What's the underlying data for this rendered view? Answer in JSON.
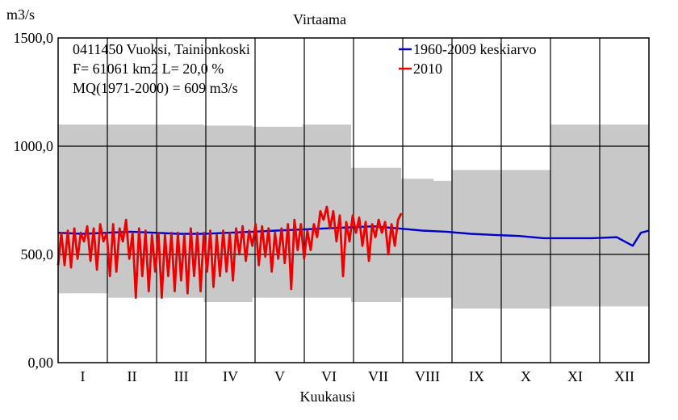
{
  "chart_data": {
    "type": "line",
    "title": "Virtaama",
    "ylabel": "m3/s",
    "xlabel": "Kuukausi",
    "ylim": [
      0,
      1500
    ],
    "y_ticks": [
      {
        "value": 0,
        "label": "0,00"
      },
      {
        "value": 500,
        "label": "500,0"
      },
      {
        "value": 1000,
        "label": "1000,0"
      },
      {
        "value": 1500,
        "label": "1500,0"
      }
    ],
    "months": [
      "I",
      "II",
      "III",
      "IV",
      "V",
      "VI",
      "VII",
      "VIII",
      "IX",
      "X",
      "XI",
      "XII"
    ],
    "grid": true,
    "info_lines": [
      "0411450 Vuoksi, Tainionkoski",
      "F=  61061 km2 L=  20,0 %",
      "MQ(1971-2000) = 609 m3/s"
    ],
    "legend_position": "top-right",
    "colors": {
      "envelope": "#c8c8c8",
      "mean": "#0000cc",
      "current": "#ee0000",
      "grid": "#000000"
    },
    "envelope": {
      "name": "",
      "x": [
        0,
        31,
        59,
        90,
        120,
        151,
        181,
        212,
        232,
        243,
        273,
        304,
        334,
        365
      ],
      "max": [
        1100,
        1100,
        1100,
        1095,
        1090,
        1100,
        900,
        850,
        840,
        890,
        890,
        1100,
        1100,
        1100
      ],
      "min": [
        320,
        300,
        300,
        280,
        300,
        300,
        280,
        300,
        300,
        250,
        250,
        260,
        260,
        280
      ]
    },
    "series": [
      {
        "name": "1960-2009 keskiarvo",
        "x": [
          0,
          15,
          30,
          45,
          60,
          75,
          90,
          105,
          120,
          135,
          150,
          165,
          180,
          195,
          210,
          225,
          240,
          255,
          270,
          285,
          300,
          315,
          330,
          345,
          355,
          360,
          365
        ],
        "y": [
          600,
          595,
          600,
          605,
          600,
          595,
          595,
          600,
          605,
          610,
          615,
          620,
          625,
          630,
          620,
          610,
          605,
          595,
          590,
          585,
          575,
          575,
          575,
          580,
          540,
          600,
          610
        ]
      },
      {
        "name": "2010",
        "x": [
          0,
          2,
          4,
          6,
          8,
          10,
          12,
          14,
          16,
          18,
          20,
          22,
          24,
          26,
          28,
          30,
          32,
          34,
          36,
          38,
          40,
          42,
          44,
          46,
          48,
          50,
          52,
          54,
          56,
          58,
          60,
          62,
          64,
          66,
          68,
          70,
          72,
          74,
          76,
          78,
          80,
          82,
          84,
          86,
          88,
          90,
          92,
          94,
          96,
          98,
          100,
          102,
          104,
          106,
          108,
          110,
          112,
          114,
          116,
          118,
          120,
          122,
          124,
          126,
          128,
          130,
          132,
          134,
          136,
          138,
          140,
          142,
          144,
          146,
          148,
          150,
          152,
          154,
          156,
          158,
          160,
          162,
          164,
          166,
          168,
          170,
          172,
          174,
          176,
          178,
          180,
          182,
          184,
          186,
          188,
          190,
          192,
          194,
          196,
          198,
          200,
          202,
          204,
          206,
          208,
          210,
          212
        ],
        "y": [
          450,
          600,
          450,
          610,
          440,
          620,
          480,
          600,
          560,
          630,
          470,
          620,
          430,
          640,
          560,
          600,
          400,
          640,
          420,
          620,
          560,
          660,
          480,
          600,
          300,
          620,
          400,
          610,
          330,
          590,
          420,
          600,
          300,
          590,
          400,
          600,
          330,
          600,
          380,
          590,
          320,
          620,
          400,
          600,
          330,
          600,
          420,
          610,
          350,
          590,
          400,
          610,
          420,
          600,
          380,
          620,
          500,
          630,
          470,
          610,
          540,
          640,
          450,
          630,
          490,
          620,
          420,
          600,
          480,
          620,
          460,
          640,
          340,
          660,
          520,
          640,
          480,
          610,
          520,
          640,
          580,
          700,
          660,
          720,
          620,
          700,
          560,
          680,
          400,
          650,
          560,
          680,
          600,
          670,
          540,
          650,
          470,
          640,
          580,
          660,
          600,
          650,
          500,
          640,
          540,
          660,
          690
        ]
      }
    ]
  }
}
